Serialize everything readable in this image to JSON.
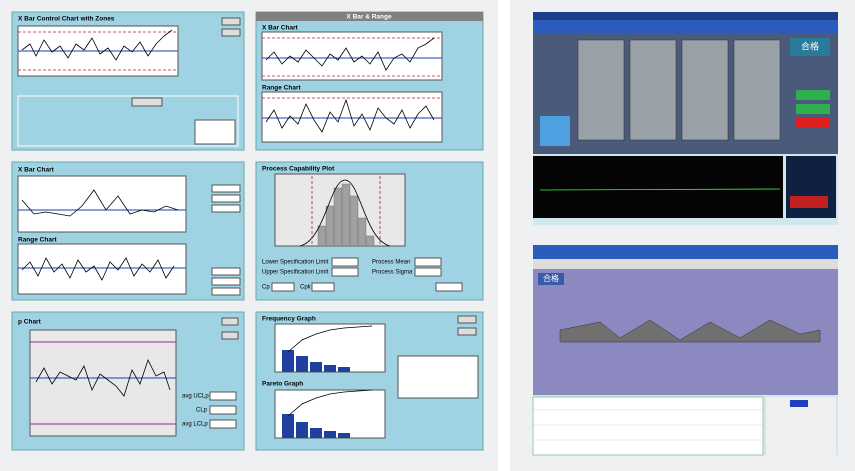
{
  "left": {
    "panels": [
      {
        "title": "X Bar Control Chart with Zones"
      },
      {
        "title": "X Bar & Range",
        "charts": [
          "X Bar Chart",
          "Range Chart"
        ]
      },
      {
        "charts": [
          "X Bar Chart",
          "Range Chart"
        ]
      },
      {
        "title": "Process Capability Plot",
        "fields": [
          "Lower Specification Limit",
          "Upper Specification Limit",
          "Process Mean",
          "Process Sigma",
          "Cp",
          "Cpk"
        ]
      },
      {
        "title": "p Chart",
        "fields": [
          "avg UCLp",
          "CLp",
          "avg LCLp"
        ]
      },
      {
        "charts": [
          "Frequency Graph",
          "Pareto Graph"
        ]
      }
    ]
  },
  "right": {
    "top": {
      "badge": "合格"
    },
    "bottom": {
      "badge": "合格"
    }
  }
}
